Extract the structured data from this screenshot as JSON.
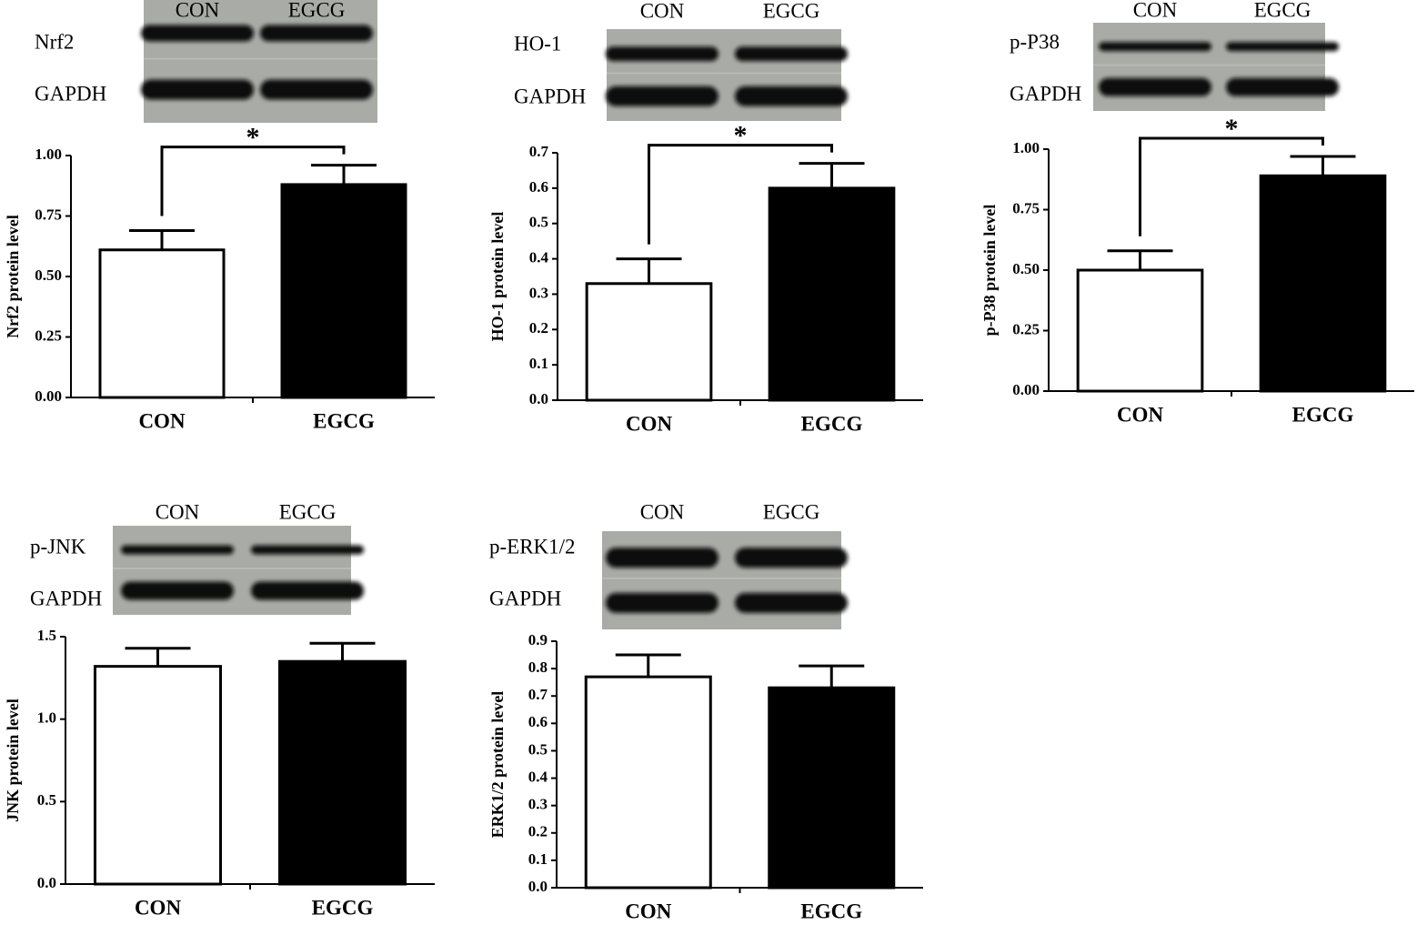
{
  "chart_data": [
    {
      "type": "bar",
      "blot": {
        "lanes": [
          "CON",
          "EGCG"
        ],
        "rows": [
          "Nrf2",
          "GAPDH"
        ]
      },
      "ylabel": "Nrf2 protein level",
      "categories": [
        "CON",
        "EGCG"
      ],
      "values": [
        0.61,
        0.88
      ],
      "errors": [
        0.08,
        0.08
      ],
      "colors": [
        "#ffffff",
        "#000000"
      ],
      "ylim": [
        0,
        1
      ],
      "yticks": [
        {
          "value": 0,
          "label": "0.00"
        },
        0.25,
        {
          "value": 0.5,
          "label": "0.50"
        },
        0.75,
        {
          "value": 1,
          "label": "1.00"
        }
      ],
      "significance": "*"
    },
    {
      "type": "bar",
      "blot": {
        "lanes": [
          "CON",
          "EGCG"
        ],
        "rows": [
          "HO-1",
          "GAPDH"
        ]
      },
      "ylabel": "HO-1  protein level",
      "categories": [
        "CON",
        "EGCG"
      ],
      "values": [
        0.33,
        0.6
      ],
      "errors": [
        0.07,
        0.07
      ],
      "colors": [
        "#ffffff",
        "#000000"
      ],
      "ylim": [
        0,
        0.7
      ],
      "yticks": [
        {
          "value": 0,
          "label": "0.0"
        },
        0.1,
        0.2,
        0.3,
        0.4,
        0.5,
        0.6,
        0.7
      ],
      "significance": "*"
    },
    {
      "type": "bar",
      "blot": {
        "lanes": [
          "CON",
          "EGCG"
        ],
        "rows": [
          "p-P38",
          "GAPDH"
        ]
      },
      "ylabel": "p-P38 protein level",
      "categories": [
        "CON",
        "EGCG"
      ],
      "values": [
        0.5,
        0.89
      ],
      "errors": [
        0.08,
        0.08
      ],
      "colors": [
        "#ffffff",
        "#000000"
      ],
      "ylim": [
        0,
        1
      ],
      "yticks": [
        {
          "value": 0,
          "label": "0.00"
        },
        0.25,
        {
          "value": 0.5,
          "label": "0.50"
        },
        0.75,
        {
          "value": 1,
          "label": "1.00"
        }
      ],
      "significance": "*"
    },
    {
      "type": "bar",
      "blot": {
        "lanes": [
          "CON",
          "EGCG"
        ],
        "rows": [
          "p-JNK",
          "GAPDH"
        ]
      },
      "ylabel": "JNK  protein level",
      "categories": [
        "CON",
        "EGCG"
      ],
      "values": [
        1.32,
        1.35
      ],
      "errors": [
        0.11,
        0.11
      ],
      "colors": [
        "#ffffff",
        "#000000"
      ],
      "ylim": [
        0,
        1.5
      ],
      "yticks": [
        {
          "value": 0,
          "label": "0.0"
        },
        0.5,
        {
          "value": 1,
          "label": "1.0"
        },
        1.5
      ]
    },
    {
      "type": "bar",
      "blot": {
        "lanes": [
          "CON",
          "EGCG"
        ],
        "rows": [
          "p-ERK1/2",
          "GAPDH"
        ]
      },
      "ylabel": "ERK1/2  protein level",
      "categories": [
        "CON",
        "EGCG"
      ],
      "values": [
        0.77,
        0.73
      ],
      "errors": [
        0.08,
        0.08
      ],
      "colors": [
        "#ffffff",
        "#000000"
      ],
      "ylim": [
        0,
        0.9
      ],
      "yticks": [
        {
          "value": 0,
          "label": "0.0"
        },
        0.1,
        0.2,
        0.3,
        0.4,
        0.5,
        0.6,
        0.7,
        0.8,
        0.9
      ]
    }
  ]
}
